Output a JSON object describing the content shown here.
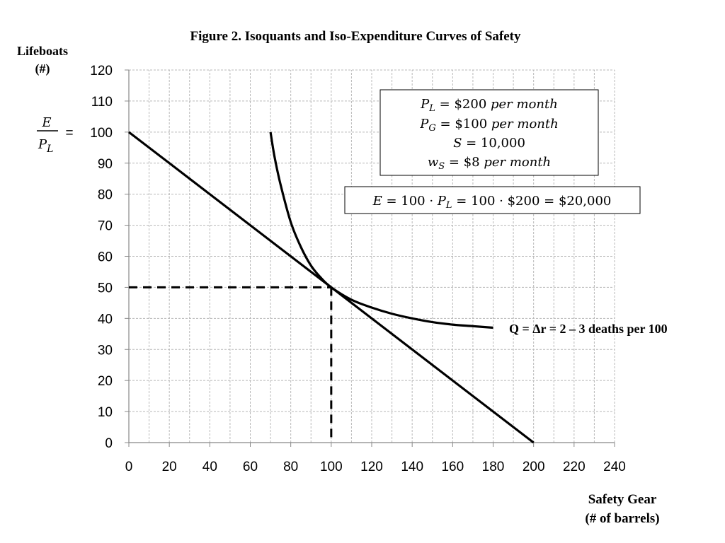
{
  "chart_data": {
    "type": "line",
    "title": "Figure 2. Isoquants and Iso-Expenditure Curves of Safety",
    "ylabel_line1": "Lifeboats",
    "ylabel_line2": "(#)",
    "ylabel_fraction_numerator": "E",
    "ylabel_fraction_denominator": "P",
    "ylabel_fraction_denominator_sub": "L",
    "ylabel_fraction_equals": "=",
    "xlabel_line1": "Safety Gear",
    "xlabel_line2": "(# of barrels)",
    "xlim": [
      0,
      240
    ],
    "ylim": [
      0,
      120
    ],
    "x_ticks": [
      0,
      20,
      40,
      60,
      80,
      100,
      120,
      140,
      160,
      180,
      200,
      220,
      240
    ],
    "y_ticks": [
      0,
      10,
      20,
      30,
      40,
      50,
      60,
      70,
      80,
      90,
      100,
      110,
      120
    ],
    "grid": true,
    "series": [
      {
        "style": "solid",
        "points": [
          [
            0,
            100
          ],
          [
            200,
            0
          ]
        ]
      },
      {
        "style": "solid",
        "points": [
          [
            70,
            100
          ],
          [
            72,
            92
          ],
          [
            75,
            83
          ],
          [
            80,
            71
          ],
          [
            85,
            63
          ],
          [
            90,
            57
          ],
          [
            95,
            53
          ],
          [
            100,
            50
          ],
          [
            110,
            46
          ],
          [
            120,
            43.5
          ],
          [
            130,
            41.5
          ],
          [
            140,
            40
          ],
          [
            150,
            38.8
          ],
          [
            160,
            38
          ],
          [
            170,
            37.5
          ],
          [
            180,
            37
          ]
        ]
      },
      {
        "style": "dashed",
        "points": [
          [
            0,
            50
          ],
          [
            100,
            50
          ]
        ]
      },
      {
        "style": "dashed",
        "points": [
          [
            100,
            50
          ],
          [
            100,
            0
          ]
        ]
      }
    ],
    "isoquant_label": "Q = Δr = 2 – 3 deaths per 100",
    "params_box": {
      "line1": {
        "sym": "P",
        "sub": "L",
        "rest": " = $200 ",
        "unit": "per month"
      },
      "line2": {
        "sym": "P",
        "sub": "G",
        "rest": " = $100 ",
        "unit": "per month"
      },
      "line3": {
        "sym": "S",
        "sub": "",
        "rest": " = 10,000",
        "unit": ""
      },
      "line4": {
        "sym": "w",
        "sub": "S",
        "rest": " = $8 ",
        "unit": "per month"
      }
    },
    "expenditure_box": {
      "part1": "E",
      "part2": " = 100 · ",
      "part3": "P",
      "part3_sub": "L",
      "part4": " = 100 · $200 = $20,000"
    },
    "colors": {
      "line": "#000000",
      "grid": "#b8b8b8",
      "axis": "#888888"
    }
  }
}
